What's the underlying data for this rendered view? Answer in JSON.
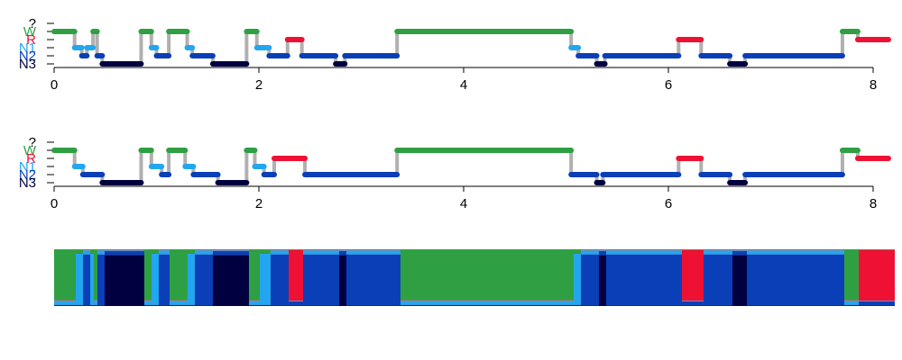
{
  "chart_data": [
    {
      "type": "line",
      "title": "",
      "xlabel": "",
      "ylabel": "",
      "xlim": [
        0,
        8
      ],
      "xticks": [
        0,
        2,
        4,
        6,
        8
      ],
      "y_categories": [
        "?",
        "W",
        "R",
        "N1",
        "N2",
        "N3"
      ],
      "colors": {
        "?": "#888888",
        "W": "#2ea043",
        "R": "#ee1133",
        "N1": "#22a6f0",
        "N2": "#0b3fb8",
        "N3": "#000040",
        "connector": "#b0b0b0"
      },
      "segments": [
        {
          "stage": "W",
          "x": [
            0.0,
            0.2
          ]
        },
        {
          "stage": "N1",
          "x": [
            0.2,
            0.27
          ]
        },
        {
          "stage": "N2",
          "x": [
            0.27,
            0.32
          ]
        },
        {
          "stage": "N1",
          "x": [
            0.32,
            0.38
          ]
        },
        {
          "stage": "W",
          "x": [
            0.38,
            0.42
          ]
        },
        {
          "stage": "N2",
          "x": [
            0.42,
            0.47
          ]
        },
        {
          "stage": "N3",
          "x": [
            0.47,
            0.85
          ]
        },
        {
          "stage": "W",
          "x": [
            0.85,
            0.95
          ]
        },
        {
          "stage": "N1",
          "x": [
            0.95,
            1.0
          ]
        },
        {
          "stage": "N2",
          "x": [
            1.0,
            1.12
          ]
        },
        {
          "stage": "W",
          "x": [
            1.12,
            1.3
          ]
        },
        {
          "stage": "N1",
          "x": [
            1.3,
            1.35
          ]
        },
        {
          "stage": "N2",
          "x": [
            1.35,
            1.55
          ]
        },
        {
          "stage": "N3",
          "x": [
            1.55,
            1.88
          ]
        },
        {
          "stage": "W",
          "x": [
            1.88,
            1.98
          ]
        },
        {
          "stage": "N1",
          "x": [
            1.98,
            2.1
          ]
        },
        {
          "stage": "N2",
          "x": [
            2.1,
            2.28
          ]
        },
        {
          "stage": "R",
          "x": [
            2.28,
            2.42
          ]
        },
        {
          "stage": "N2",
          "x": [
            2.42,
            2.75
          ]
        },
        {
          "stage": "N3",
          "x": [
            2.75,
            2.84
          ]
        },
        {
          "stage": "N2",
          "x": [
            2.84,
            3.35
          ]
        },
        {
          "stage": "W",
          "x": [
            3.35,
            5.05
          ]
        },
        {
          "stage": "N1",
          "x": [
            5.05,
            5.12
          ]
        },
        {
          "stage": "N2",
          "x": [
            5.12,
            5.3
          ]
        },
        {
          "stage": "N3",
          "x": [
            5.3,
            5.38
          ]
        },
        {
          "stage": "N2",
          "x": [
            5.38,
            6.1
          ]
        },
        {
          "stage": "R",
          "x": [
            6.1,
            6.32
          ]
        },
        {
          "stage": "N2",
          "x": [
            6.32,
            6.6
          ]
        },
        {
          "stage": "N3",
          "x": [
            6.6,
            6.75
          ]
        },
        {
          "stage": "N2",
          "x": [
            6.75,
            7.7
          ]
        },
        {
          "stage": "W",
          "x": [
            7.7,
            7.85
          ]
        },
        {
          "stage": "R",
          "x": [
            7.85,
            8.2
          ]
        }
      ]
    },
    {
      "type": "line",
      "title": "",
      "xlabel": "",
      "ylabel": "",
      "xlim": [
        0,
        8
      ],
      "xticks": [
        0,
        2,
        4,
        6,
        8
      ],
      "y_categories": [
        "?",
        "W",
        "R",
        "N1",
        "N2",
        "N3"
      ],
      "colors": {
        "?": "#888888",
        "W": "#2ea043",
        "R": "#ee1133",
        "N1": "#22a6f0",
        "N2": "#0b3fb8",
        "N3": "#000040",
        "connector": "#b0b0b0"
      },
      "segments": [
        {
          "stage": "W",
          "x": [
            0.0,
            0.2
          ]
        },
        {
          "stage": "N1",
          "x": [
            0.2,
            0.28
          ]
        },
        {
          "stage": "N2",
          "x": [
            0.28,
            0.47
          ]
        },
        {
          "stage": "N3",
          "x": [
            0.47,
            0.85
          ]
        },
        {
          "stage": "W",
          "x": [
            0.85,
            0.95
          ]
        },
        {
          "stage": "N1",
          "x": [
            0.95,
            1.05
          ]
        },
        {
          "stage": "N2",
          "x": [
            1.05,
            1.12
          ]
        },
        {
          "stage": "W",
          "x": [
            1.12,
            1.28
          ]
        },
        {
          "stage": "N1",
          "x": [
            1.28,
            1.36
          ]
        },
        {
          "stage": "N2",
          "x": [
            1.36,
            1.6
          ]
        },
        {
          "stage": "N3",
          "x": [
            1.6,
            1.88
          ]
        },
        {
          "stage": "W",
          "x": [
            1.88,
            1.96
          ]
        },
        {
          "stage": "N1",
          "x": [
            1.96,
            2.05
          ]
        },
        {
          "stage": "N2",
          "x": [
            2.05,
            2.15
          ]
        },
        {
          "stage": "R",
          "x": [
            2.15,
            2.45
          ]
        },
        {
          "stage": "N2",
          "x": [
            2.45,
            3.35
          ]
        },
        {
          "stage": "W",
          "x": [
            3.35,
            5.05
          ]
        },
        {
          "stage": "N2",
          "x": [
            5.05,
            5.3
          ]
        },
        {
          "stage": "N3",
          "x": [
            5.3,
            5.36
          ]
        },
        {
          "stage": "N2",
          "x": [
            5.36,
            6.1
          ]
        },
        {
          "stage": "R",
          "x": [
            6.1,
            6.32
          ]
        },
        {
          "stage": "N2",
          "x": [
            6.32,
            6.6
          ]
        },
        {
          "stage": "N3",
          "x": [
            6.6,
            6.75
          ]
        },
        {
          "stage": "N2",
          "x": [
            6.75,
            7.7
          ]
        },
        {
          "stage": "W",
          "x": [
            7.7,
            7.85
          ]
        },
        {
          "stage": "R",
          "x": [
            7.85,
            8.2
          ]
        }
      ]
    },
    {
      "type": "area",
      "title": "",
      "xlabel": "",
      "ylabel": "",
      "xlim": [
        0,
        8
      ],
      "grid": false,
      "stack_order": [
        "W",
        "R",
        "N1",
        "N2",
        "N3"
      ],
      "colors": {
        "W": "#2ea043",
        "R": "#ee1133",
        "N1": "#22a6f0",
        "N2": "#0b3fb8",
        "N3": "#000040"
      }
    }
  ]
}
